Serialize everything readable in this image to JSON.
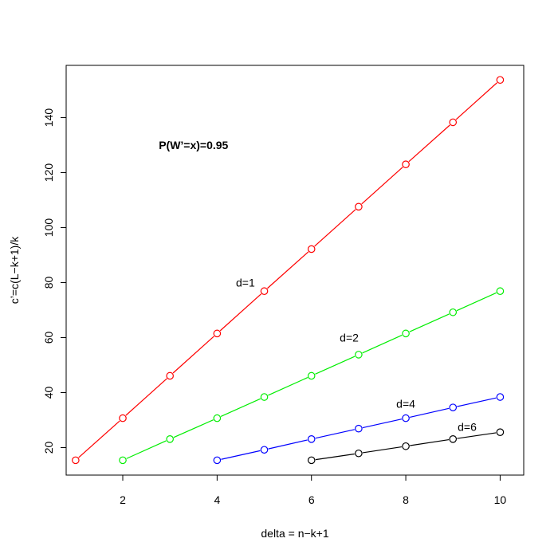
{
  "chart_data": {
    "type": "line",
    "title": "",
    "xlabel": "delta = n−k+1",
    "ylabel": "c’=c(L−k+1)/k",
    "xlim": [
      0.8,
      10.5
    ],
    "ylim": [
      10,
      159
    ],
    "xticks": [
      2,
      4,
      6,
      8,
      10
    ],
    "yticks": [
      20,
      40,
      60,
      80,
      100,
      120,
      140
    ],
    "grid": false,
    "legend": "none",
    "annotations": [
      {
        "text": "P(W’=x)=0.95",
        "x": 3.5,
        "y": 130,
        "bold": true
      },
      {
        "text": "d=1",
        "x": 4.6,
        "y": 80,
        "bold": false
      },
      {
        "text": "d=2",
        "x": 6.8,
        "y": 60,
        "bold": false
      },
      {
        "text": "d=4",
        "x": 8.0,
        "y": 36,
        "bold": false
      },
      {
        "text": "d=6",
        "x": 9.3,
        "y": 27.5,
        "bold": false
      }
    ],
    "series": [
      {
        "color": "#ff0000",
        "x": [
          1,
          2,
          3,
          4,
          5,
          6,
          7,
          8,
          9,
          10
        ],
        "values": [
          15.4,
          30.7,
          46.1,
          61.5,
          76.9,
          92.2,
          107.6,
          123.0,
          138.3,
          153.7
        ]
      },
      {
        "color": "#00ee00",
        "x": [
          2,
          3,
          4,
          5,
          6,
          7,
          8,
          9,
          10
        ],
        "values": [
          15.4,
          23.1,
          30.7,
          38.4,
          46.1,
          53.8,
          61.5,
          69.2,
          76.9
        ]
      },
      {
        "color": "#0000ff",
        "x": [
          4,
          5,
          6,
          7,
          8,
          9,
          10
        ],
        "values": [
          15.4,
          19.2,
          23.1,
          26.9,
          30.7,
          34.6,
          38.4
        ]
      },
      {
        "color": "#000000",
        "x": [
          6,
          7,
          8,
          9,
          10
        ],
        "values": [
          15.4,
          17.9,
          20.5,
          23.1,
          25.6
        ]
      }
    ]
  }
}
